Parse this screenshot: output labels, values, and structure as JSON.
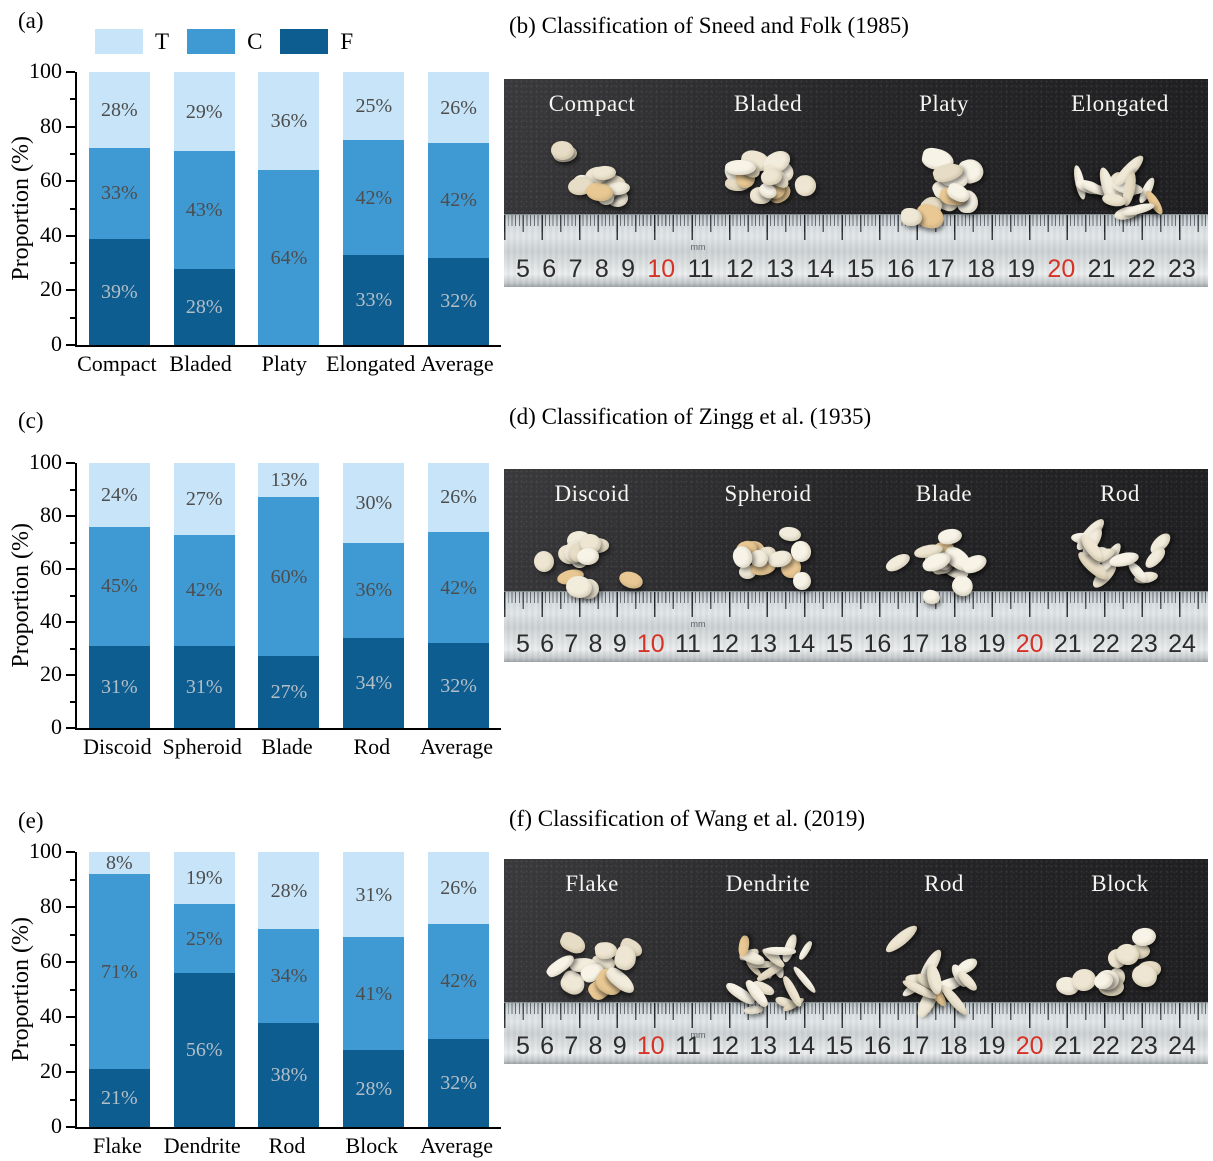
{
  "legend": {
    "items": [
      {
        "label": "T",
        "color": "#c7e4f8"
      },
      {
        "label": "C",
        "color": "#3f9ad3"
      },
      {
        "label": "F",
        "color": "#0d5d90"
      }
    ]
  },
  "chart_data": [
    {
      "type": "bar",
      "subtype": "stacked",
      "panel": "(a)",
      "ylabel": "Proportion (%)",
      "ylim": [
        0,
        100
      ],
      "yticks": [
        0,
        20,
        40,
        60,
        80,
        100
      ],
      "legend_position": "top",
      "categories": [
        "Compact",
        "Bladed",
        "Platy",
        "Elongated",
        "Average"
      ],
      "series": [
        {
          "name": "F",
          "color": "#0d5d90",
          "values": [
            39,
            28,
            0,
            33,
            32
          ]
        },
        {
          "name": "C",
          "color": "#3f9ad3",
          "values": [
            33,
            43,
            64,
            42,
            42
          ]
        },
        {
          "name": "T",
          "color": "#c7e4f8",
          "values": [
            28,
            29,
            36,
            25,
            26
          ]
        }
      ]
    },
    {
      "type": "bar",
      "subtype": "stacked",
      "panel": "(c)",
      "ylabel": "Proportion (%)",
      "ylim": [
        0,
        100
      ],
      "yticks": [
        0,
        20,
        40,
        60,
        80,
        100
      ],
      "categories": [
        "Discoid",
        "Spheroid",
        "Blade",
        "Rod",
        "Average"
      ],
      "series": [
        {
          "name": "F",
          "color": "#0d5d90",
          "values": [
            31,
            31,
            27,
            34,
            32
          ]
        },
        {
          "name": "C",
          "color": "#3f9ad3",
          "values": [
            45,
            42,
            60,
            36,
            42
          ]
        },
        {
          "name": "T",
          "color": "#c7e4f8",
          "values": [
            24,
            27,
            13,
            30,
            26
          ]
        }
      ]
    },
    {
      "type": "bar",
      "subtype": "stacked",
      "panel": "(e)",
      "ylabel": "Proportion (%)",
      "ylim": [
        0,
        100
      ],
      "yticks": [
        0,
        20,
        40,
        60,
        80,
        100
      ],
      "categories": [
        "Flake",
        "Dendrite",
        "Rod",
        "Block",
        "Average"
      ],
      "series": [
        {
          "name": "F",
          "color": "#0d5d90",
          "values": [
            21,
            56,
            38,
            28,
            32
          ]
        },
        {
          "name": "C",
          "color": "#3f9ad3",
          "values": [
            71,
            25,
            34,
            41,
            42
          ]
        },
        {
          "name": "T",
          "color": "#c7e4f8",
          "values": [
            8,
            19,
            28,
            31,
            26
          ]
        }
      ]
    }
  ],
  "photos": [
    {
      "title": "(b) Classification of Sneed and Folk (1985)",
      "groups": [
        {
          "label": "Compact",
          "shape": "round"
        },
        {
          "label": "Bladed",
          "shape": "chunky"
        },
        {
          "label": "Platy",
          "shape": "platy"
        },
        {
          "label": "Elongated",
          "shape": "elongated"
        }
      ],
      "ruler": {
        "unit": "mm",
        "numbers": [
          "5",
          "6",
          "7",
          "8",
          "9",
          "10",
          "11",
          "12",
          "13",
          "14",
          "15",
          "16",
          "17",
          "18",
          "19",
          "20",
          "21",
          "22",
          "23"
        ],
        "red_numbers": [
          "10",
          "20"
        ]
      }
    },
    {
      "title": "(d) Classification of Zingg et al. (1935)",
      "groups": [
        {
          "label": "Discoid",
          "shape": "round"
        },
        {
          "label": "Spheroid",
          "shape": "round"
        },
        {
          "label": "Blade",
          "shape": "chunky"
        },
        {
          "label": "Rod",
          "shape": "elongated"
        }
      ],
      "ruler": {
        "unit": "mm",
        "numbers": [
          "5",
          "6",
          "7",
          "8",
          "9",
          "10",
          "11",
          "12",
          "13",
          "14",
          "15",
          "16",
          "17",
          "18",
          "19",
          "20",
          "21",
          "22",
          "23",
          "24"
        ],
        "red_numbers": [
          "10",
          "20"
        ]
      }
    },
    {
      "title": "(f) Classification of Wang et al. (2019)",
      "groups": [
        {
          "label": "Flake",
          "shape": "platy"
        },
        {
          "label": "Dendrite",
          "shape": "branched"
        },
        {
          "label": "Rod",
          "shape": "elongated"
        },
        {
          "label": "Block",
          "shape": "round"
        }
      ],
      "ruler": {
        "unit": "mm",
        "numbers": [
          "5",
          "6",
          "7",
          "8",
          "9",
          "10",
          "11",
          "12",
          "13",
          "14",
          "15",
          "16",
          "17",
          "18",
          "19",
          "20",
          "21",
          "22",
          "23",
          "24"
        ],
        "red_numbers": [
          "10",
          "20"
        ]
      }
    }
  ]
}
